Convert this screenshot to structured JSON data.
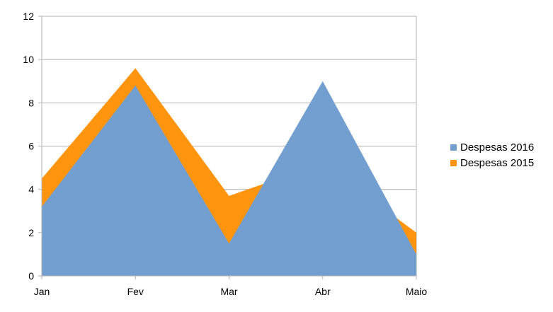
{
  "chart_data": {
    "type": "area",
    "title": "",
    "xlabel": "",
    "ylabel": "",
    "categories": [
      "Jan",
      "Fev",
      "Mar",
      "Abr",
      "Maio"
    ],
    "ylim": [
      0,
      12
    ],
    "yticks": [
      "0",
      "2",
      "4",
      "6",
      "8",
      "10",
      "12"
    ],
    "grid": "horizontal",
    "legend_position": "right",
    "series": [
      {
        "name": "Despesas 2015",
        "values": [
          4.5,
          9.6,
          3.7,
          5.2,
          2
        ],
        "color": "#ff950e"
      },
      {
        "name": "Despesas 2016",
        "values": [
          3.2,
          8.8,
          1.5,
          9,
          1
        ],
        "color": "#729fcf"
      }
    ]
  },
  "legend": {
    "items": [
      {
        "label": "Despesas 2016",
        "color": "#729fcf"
      },
      {
        "label": "Despesas 2015",
        "color": "#ff950e"
      }
    ]
  }
}
